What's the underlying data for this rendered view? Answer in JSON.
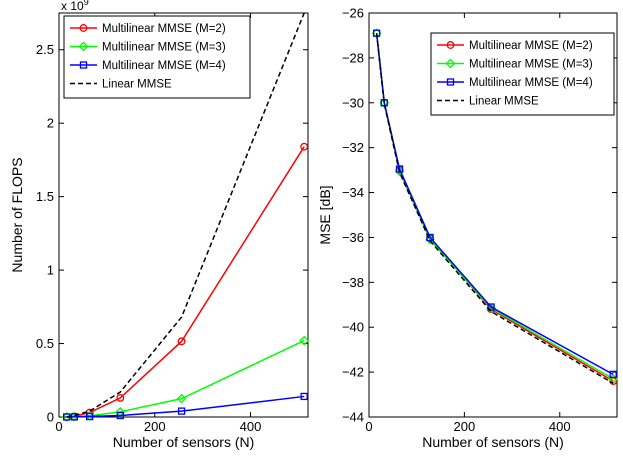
{
  "chart_data": [
    {
      "type": "line",
      "xlabel": "Number of sensors (N)",
      "ylabel": "Number of FLOPS",
      "xlim": [
        0,
        520
      ],
      "ylim": [
        0,
        2.75
      ],
      "x_ticks": [
        0,
        200,
        400
      ],
      "y_ticks": [
        0,
        0.5,
        1,
        1.5,
        2,
        2.5
      ],
      "y_tick_labels": [
        "0",
        "0.5",
        "1",
        "1.5",
        "2",
        "2.5"
      ],
      "x_tick_labels": [
        "0",
        "200",
        "400"
      ],
      "y_scale_note": {
        "base": "x 10",
        "exponent": "9"
      },
      "grid": false,
      "legend_position": "top-left",
      "series": [
        {
          "name": "Multilinear MMSE (M=2)",
          "color": "#ff0000",
          "marker": "circle",
          "dash": "solid",
          "x": [
            16,
            32,
            64,
            128,
            256,
            512
          ],
          "y": [
            0.0,
            0.005,
            0.03,
            0.13,
            0.515,
            1.84
          ]
        },
        {
          "name": "Multilinear MMSE (M=3)",
          "color": "#00ff00",
          "marker": "diamond",
          "dash": "solid",
          "x": [
            16,
            32,
            64,
            128,
            256,
            512
          ],
          "y": [
            0.0,
            0.002,
            0.008,
            0.035,
            0.125,
            0.52
          ]
        },
        {
          "name": "Multilinear MMSE (M=4)",
          "color": "#0000ff",
          "marker": "square",
          "dash": "solid",
          "x": [
            16,
            32,
            64,
            128,
            256,
            512
          ],
          "y": [
            0.0,
            0.001,
            0.003,
            0.01,
            0.04,
            0.14
          ]
        },
        {
          "name": "Linear MMSE",
          "color": "#000000",
          "marker": "none",
          "dash": "dashed",
          "x": [
            16,
            32,
            64,
            128,
            256,
            512
          ],
          "y": [
            0.0,
            0.01,
            0.04,
            0.17,
            0.68,
            2.75
          ]
        }
      ]
    },
    {
      "type": "line",
      "xlabel": "Number of sensors (N)",
      "ylabel": "MSE [dB]",
      "xlim": [
        0,
        520
      ],
      "ylim": [
        -44,
        -26
      ],
      "x_ticks": [
        0,
        200,
        400
      ],
      "y_ticks": [
        -44,
        -42,
        -40,
        -38,
        -36,
        -34,
        -32,
        -30,
        -28,
        -26
      ],
      "x_tick_labels": [
        "0",
        "200",
        "400"
      ],
      "y_tick_labels": [
        "−44",
        "−42",
        "−40",
        "−38",
        "−36",
        "−34",
        "−32",
        "−30",
        "−28",
        "−26"
      ],
      "grid": false,
      "legend_position": "top-right",
      "series": [
        {
          "name": "Multilinear MMSE (M=2)",
          "color": "#ff0000",
          "marker": "circle",
          "dash": "solid",
          "x": [
            16,
            32,
            64,
            128,
            256,
            512
          ],
          "y": [
            -26.9,
            -30.0,
            -33.0,
            -36.05,
            -39.2,
            -42.4
          ]
        },
        {
          "name": "Multilinear MMSE (M=3)",
          "color": "#00ff00",
          "marker": "diamond",
          "dash": "solid",
          "x": [
            16,
            32,
            64,
            128,
            256,
            512
          ],
          "y": [
            -26.9,
            -30.0,
            -33.05,
            -36.1,
            -39.15,
            -42.3
          ]
        },
        {
          "name": "Multilinear MMSE (M=4)",
          "color": "#0000ff",
          "marker": "square",
          "dash": "solid",
          "x": [
            16,
            32,
            64,
            128,
            256,
            512
          ],
          "y": [
            -26.9,
            -30.0,
            -32.95,
            -36.0,
            -39.1,
            -42.1
          ]
        },
        {
          "name": "Linear MMSE",
          "color": "#000000",
          "marker": "none",
          "dash": "dashed",
          "x": [
            16,
            32,
            64,
            128,
            256,
            512
          ],
          "y": [
            -26.9,
            -30.05,
            -33.1,
            -36.15,
            -39.3,
            -42.5
          ]
        }
      ]
    }
  ]
}
